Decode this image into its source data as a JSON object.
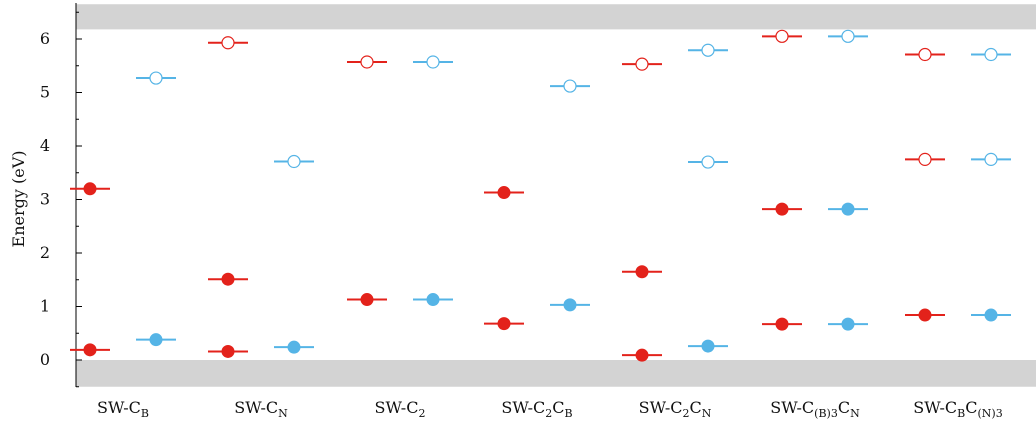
{
  "chart_data": {
    "type": "scatter",
    "ylabel": "Energy (eV)",
    "ylim": [
      -0.5,
      6.65
    ],
    "yticks": [
      "0",
      "1",
      "2",
      "3",
      "4",
      "5",
      "6"
    ],
    "shaded_bands": [
      {
        "from": -0.5,
        "to": 0.0,
        "color": "#d3d3d3"
      },
      {
        "from": 6.18,
        "to": 6.65,
        "color": "#d3d3d3"
      }
    ],
    "colors": {
      "spin_up": "#e3221b",
      "spin_down": "#55b4e6"
    },
    "categories": [
      {
        "label": "SW-C_B",
        "base": "SW-C",
        "sub": "B",
        "tail": "",
        "tsub": "",
        "spin_up": {
          "occupied": [
            3.2,
            0.19
          ],
          "empty": []
        },
        "spin_down": {
          "occupied": [
            0.38
          ],
          "empty": [
            5.27
          ]
        }
      },
      {
        "label": "SW-C_N",
        "base": "SW-C",
        "sub": "N",
        "tail": "",
        "tsub": "",
        "spin_up": {
          "occupied": [
            1.51,
            0.16
          ],
          "empty": [
            5.93
          ]
        },
        "spin_down": {
          "occupied": [
            0.24
          ],
          "empty": [
            3.71
          ]
        }
      },
      {
        "label": "SW-C_2",
        "base": "SW-C",
        "sub": "2",
        "tail": "",
        "tsub": "",
        "spin_up": {
          "occupied": [
            1.13
          ],
          "empty": [
            5.57
          ]
        },
        "spin_down": {
          "occupied": [
            1.13
          ],
          "empty": [
            5.57
          ]
        }
      },
      {
        "label": "SW-C_2C_B",
        "base": "SW-C",
        "sub": "2",
        "tail": "C",
        "tsub": "B",
        "spin_up": {
          "occupied": [
            3.13,
            0.68
          ],
          "empty": []
        },
        "spin_down": {
          "occupied": [
            1.03
          ],
          "empty": [
            5.12
          ]
        }
      },
      {
        "label": "SW-C_2C_N",
        "base": "SW-C",
        "sub": "2",
        "tail": "C",
        "tsub": "N",
        "spin_up": {
          "occupied": [
            1.65,
            0.09
          ],
          "empty": [
            5.53
          ]
        },
        "spin_down": {
          "occupied": [
            0.26
          ],
          "empty": [
            5.79,
            3.7
          ]
        }
      },
      {
        "label": "SW-C_(B)3C_N",
        "base": "SW-C",
        "sub": "(B)3",
        "tail": "C",
        "tsub": "N",
        "spin_up": {
          "occupied": [
            2.82,
            0.67
          ],
          "empty": [
            6.05
          ]
        },
        "spin_down": {
          "occupied": [
            2.82,
            0.67
          ],
          "empty": [
            6.05
          ]
        }
      },
      {
        "label": "SW-C_BC_(N)3",
        "base": "SW-C",
        "sub": "B",
        "tail": "C",
        "tsub": "(N)3",
        "spin_up": {
          "occupied": [
            0.84
          ],
          "empty": [
            5.71,
            3.75
          ]
        },
        "spin_down": {
          "occupied": [
            0.84
          ],
          "empty": [
            5.71,
            3.75
          ]
        }
      }
    ]
  }
}
